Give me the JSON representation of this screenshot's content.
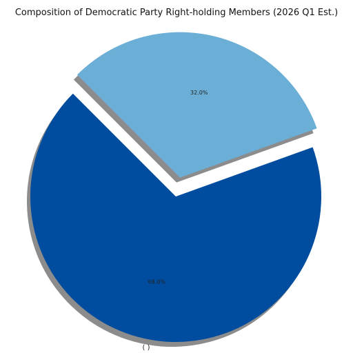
{
  "chart_data": {
    "type": "pie",
    "title": "Composition of Democratic Party Right-holding Members (2026 Q1 Est.)",
    "slices": [
      {
        "value": 68.0,
        "label": "68.0%",
        "color": "#004d9f",
        "exploded": false
      },
      {
        "value": 32.0,
        "label": "32.0%",
        "color": "#6baed6",
        "exploded": true
      }
    ],
    "start_angle_deg": 135,
    "shadow": true,
    "shadow_color": "#8c8c8c",
    "bottom_label": "(   )"
  }
}
